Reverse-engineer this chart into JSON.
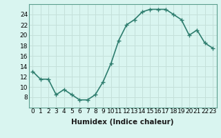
{
  "x": [
    0,
    1,
    2,
    3,
    4,
    5,
    6,
    7,
    8,
    9,
    10,
    11,
    12,
    13,
    14,
    15,
    16,
    17,
    18,
    19,
    20,
    21,
    22,
    23
  ],
  "y": [
    13,
    11.5,
    11.5,
    8.5,
    9.5,
    8.5,
    7.5,
    7.5,
    8.5,
    11,
    14.5,
    19,
    22,
    23,
    24.5,
    25,
    25,
    25,
    24,
    23,
    20,
    21,
    18.5,
    17.5
  ],
  "line_color": "#2e7d6e",
  "marker": "+",
  "marker_size": 4,
  "linewidth": 1.2,
  "background_color": "#d9f5f0",
  "grid_color": "#c4e0da",
  "xlabel": "Humidex (Indice chaleur)",
  "xlabel_fontsize": 7.5,
  "tick_fontsize": 6.5,
  "ylim": [
    6,
    26
  ],
  "yticks": [
    8,
    10,
    12,
    14,
    16,
    18,
    20,
    22,
    24
  ],
  "xlim": [
    -0.5,
    23.5
  ],
  "xticks": [
    0,
    1,
    2,
    3,
    4,
    5,
    6,
    7,
    8,
    9,
    10,
    11,
    12,
    13,
    14,
    15,
    16,
    17,
    18,
    19,
    20,
    21,
    22,
    23
  ],
  "xtick_labels": [
    "0",
    "1",
    "2",
    "3",
    "4",
    "5",
    "6",
    "7",
    "8",
    "9",
    "10",
    "11",
    "12",
    "13",
    "14",
    "15",
    "16",
    "17",
    "18",
    "19",
    "20",
    "21",
    "22",
    "23"
  ]
}
